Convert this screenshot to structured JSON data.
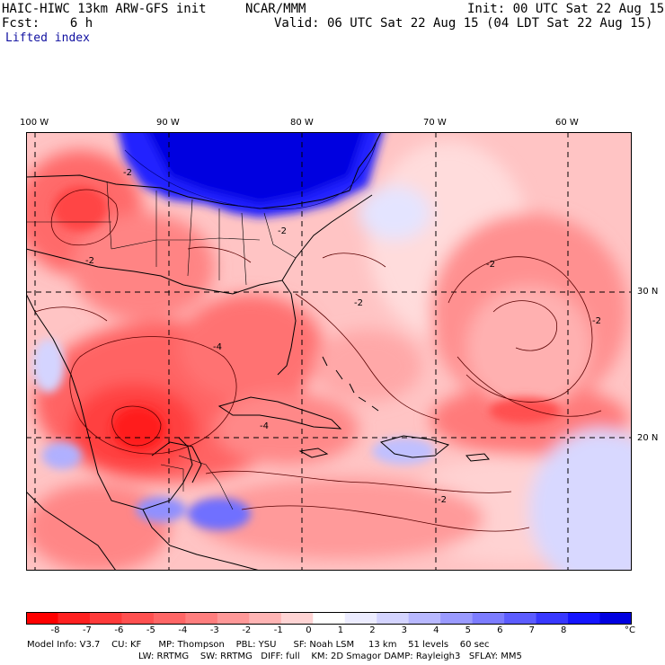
{
  "header": {
    "model": "HAIC-HIWC 13km ARW-GFS init",
    "org": "NCAR/MMM",
    "init": "Init: 00 UTC Sat 22 Aug 15",
    "fcst": "Fcst:    6 h",
    "valid": "Valid: 06 UTC Sat 22 Aug 15 (04 LDT Sat 22 Aug 15)",
    "field": "Lifted index"
  },
  "map": {
    "longitudes": [
      "100 W",
      "90 W",
      "80 W",
      "70 W",
      "60 W"
    ],
    "latitudes": [
      "30 N",
      "20 N"
    ],
    "contour_labels": [
      "-2",
      "-2",
      "-2",
      "-2",
      "-2",
      "-2",
      "-4",
      "-4",
      "-2"
    ],
    "colors": {
      "deep_red": "#ff2020",
      "red": "#ff5a5a",
      "salmon": "#ff9a9a",
      "pink": "#ffcccc",
      "blue": "#0000e0",
      "light_blue": "#c8c8ff"
    }
  },
  "colorbar": {
    "labels": [
      "-8",
      "-7",
      "-6",
      "-5",
      "-4",
      "-3",
      "-2",
      "-1",
      "0",
      "1",
      "2",
      "3",
      "4",
      "5",
      "6",
      "7",
      "8"
    ],
    "unit": "°C",
    "colors": [
      "#ff0000",
      "#ff2020",
      "#ff3a3a",
      "#ff5050",
      "#ff6666",
      "#ff7e7e",
      "#ff9898",
      "#ffb4b4",
      "#ffd4d4",
      "#ffffff",
      "#ececff",
      "#d4d4ff",
      "#b8b8ff",
      "#9a9aff",
      "#7c7cff",
      "#5c5cff",
      "#3838ff",
      "#1414ff",
      "#0000e0"
    ]
  },
  "info": {
    "line1": "Model Info: V3.7    CU: KF      MP: Thompson    PBL: YSU      SF: Noah LSM     13 km    51 levels    60 sec",
    "line2": "LW: RRTMG    SW: RRTMG   DIFF: full    KM: 2D Smagor DAMP: Rayleigh3   SFLAY: MM5"
  }
}
